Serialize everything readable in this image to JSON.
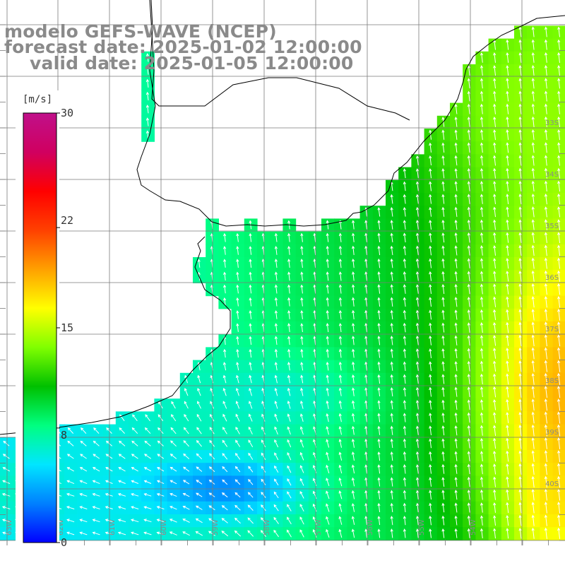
{
  "title": {
    "line1": "modelo GEFS-WAVE (NCEP)",
    "line2": "forecast date: 2025-01-02 12:00:00",
    "line3": "valid date: 2025-01-05 12:00:00"
  },
  "colorbar": {
    "unit": "[m/s]",
    "min": 0,
    "max": 30,
    "ticks": [
      "30",
      "22",
      "15",
      "8",
      "0"
    ],
    "tick_values": [
      30,
      22,
      15,
      8,
      0
    ],
    "colors": [
      "#0000ff",
      "#0080ff",
      "#00e6ff",
      "#00ff80",
      "#00c000",
      "#80ff00",
      "#ffff00",
      "#ffa000",
      "#ff4000",
      "#ff0000",
      "#d00060",
      "#c0108a"
    ]
  },
  "map": {
    "lat_labels": [
      "33S",
      "34S",
      "35S",
      "36S",
      "37S",
      "38S",
      "39S",
      "40S"
    ],
    "lon_labels": [
      "63W",
      "62W",
      "61W",
      "60W",
      "59W",
      "58W",
      "57W",
      "56W",
      "55W",
      "54W"
    ],
    "land_color": "#ffffff",
    "grid_color": "#7a7a7a",
    "coast_color": "#000000",
    "wind_field_description_colors": {
      "weak": "#0050ff",
      "moderate": "#00b4ff",
      "strong": "#00ff60"
    }
  }
}
